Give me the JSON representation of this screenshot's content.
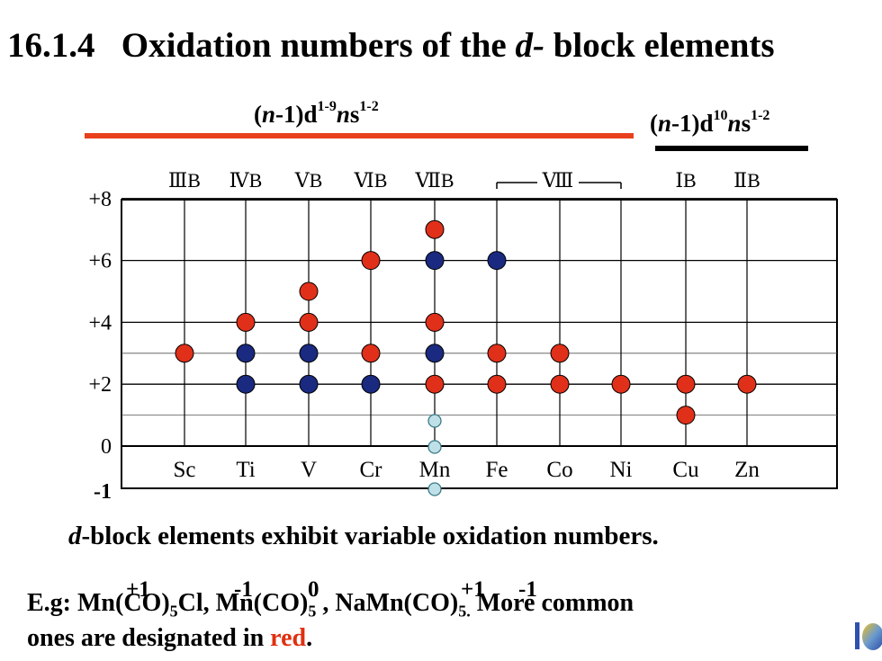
{
  "title": {
    "number": "16.1.4",
    "text_before": "Oxidation numbers of the",
    "italic": "d-",
    "text_after": "block elements"
  },
  "config_left": {
    "n": "n",
    "part1": "-1)d",
    "sup1": "1-9",
    "ns": "n",
    "part2": "s",
    "sup2": "1-2"
  },
  "config_right": {
    "n": "n",
    "part1": "-1)d",
    "sup1": "10",
    "ns": "n",
    "part2": "s",
    "sup2": "1-2"
  },
  "colors": {
    "red_dot": "#e0301a",
    "blue_dot": "#1a2a80",
    "pale_dot": "#bfe0e6",
    "red_rule": "#e8401c",
    "red_text": "#e03010"
  },
  "chart_data": {
    "type": "scatter",
    "groups": [
      "ⅢB",
      "ⅣB",
      "ⅤB",
      "ⅥB",
      "ⅦB",
      "Ⅷ",
      "ⅠB",
      "ⅡB"
    ],
    "categories": [
      "Sc",
      "Ti",
      "V",
      "Cr",
      "Mn",
      "Fe",
      "Co",
      "Ni",
      "Cu",
      "Zn"
    ],
    "y_tick_labels": [
      "+8",
      "+6",
      "+4",
      "+2",
      "0",
      "-1"
    ],
    "ylim": [
      -1,
      8
    ],
    "grid": true,
    "points": [
      {
        "x": "Sc",
        "y": 3,
        "color": "red"
      },
      {
        "x": "Ti",
        "y": 4,
        "color": "red"
      },
      {
        "x": "Ti",
        "y": 3,
        "color": "blue"
      },
      {
        "x": "Ti",
        "y": 2,
        "color": "blue"
      },
      {
        "x": "V",
        "y": 5,
        "color": "red"
      },
      {
        "x": "V",
        "y": 4,
        "color": "red"
      },
      {
        "x": "V",
        "y": 3,
        "color": "blue"
      },
      {
        "x": "V",
        "y": 2,
        "color": "blue"
      },
      {
        "x": "Cr",
        "y": 6,
        "color": "red"
      },
      {
        "x": "Cr",
        "y": 3,
        "color": "red"
      },
      {
        "x": "Cr",
        "y": 2,
        "color": "blue"
      },
      {
        "x": "Mn",
        "y": 7,
        "color": "red"
      },
      {
        "x": "Mn",
        "y": 6,
        "color": "blue"
      },
      {
        "x": "Mn",
        "y": 4,
        "color": "red"
      },
      {
        "x": "Mn",
        "y": 3,
        "color": "blue"
      },
      {
        "x": "Mn",
        "y": 2,
        "color": "red"
      },
      {
        "x": "Mn",
        "y": 1,
        "color": "pale"
      },
      {
        "x": "Mn",
        "y": 0,
        "color": "pale"
      },
      {
        "x": "Mn",
        "y": -1,
        "color": "pale"
      },
      {
        "x": "Fe",
        "y": 6,
        "color": "blue"
      },
      {
        "x": "Fe",
        "y": 3,
        "color": "red"
      },
      {
        "x": "Fe",
        "y": 2,
        "color": "red"
      },
      {
        "x": "Co",
        "y": 3,
        "color": "red"
      },
      {
        "x": "Co",
        "y": 2,
        "color": "red"
      },
      {
        "x": "Ni",
        "y": 2,
        "color": "red"
      },
      {
        "x": "Cu",
        "y": 2,
        "color": "red"
      },
      {
        "x": "Cu",
        "y": 1,
        "color": "red"
      },
      {
        "x": "Zn",
        "y": 2,
        "color": "red"
      }
    ]
  },
  "subtitle": {
    "italic": "d",
    "rest": "-block elements exhibit variable oxidation numbers."
  },
  "oxidation_labels": [
    "+1",
    "-1",
    "0",
    "+1",
    "-1"
  ],
  "example": {
    "prefix": "E.g: Mn(CO)",
    "sub1": "5",
    "cl": "Cl, Mn(CO)",
    "sub2": "5",
    "na": " , NaMn(CO)",
    "sub3": "5.",
    "more": " More common",
    "line2_start": "ones are designated in ",
    "red_word": "red",
    "line2_end": "."
  }
}
